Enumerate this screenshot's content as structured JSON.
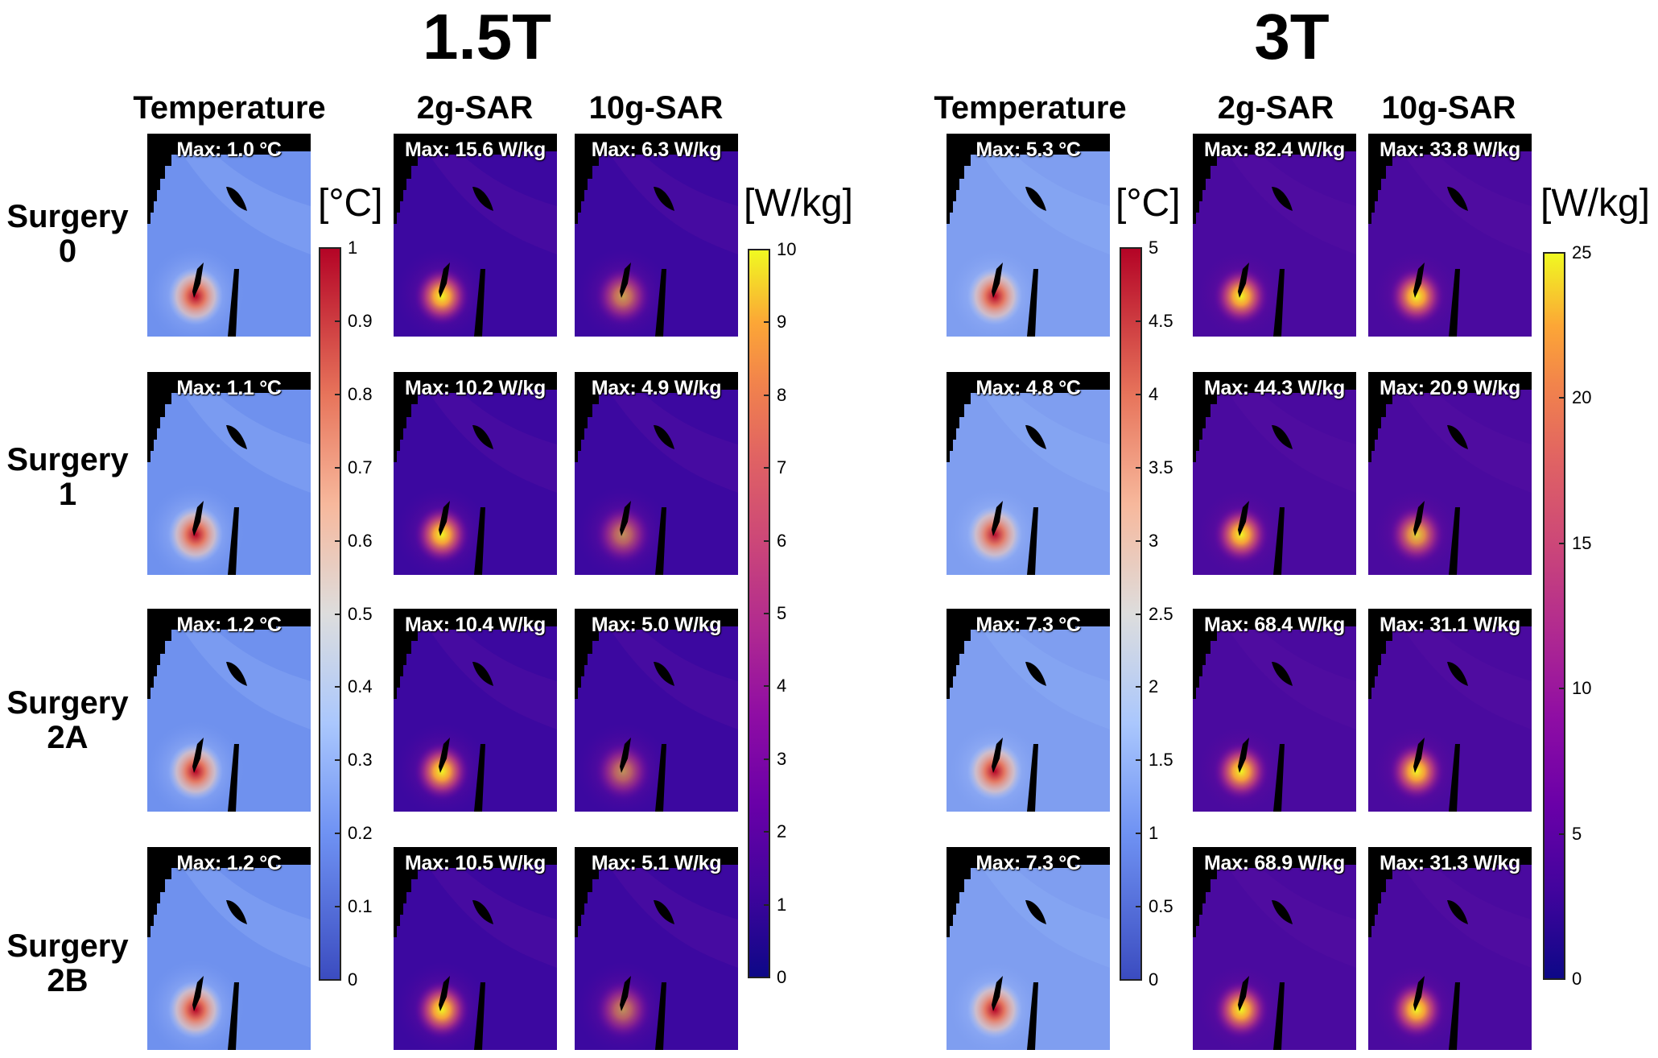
{
  "fields": [
    {
      "title": "1.5T",
      "columns": [
        "Temperature",
        "2g-SAR",
        "10g-SAR"
      ],
      "temp_colorbar": {
        "unit": "[°C]",
        "min": 0,
        "max": 1,
        "ticks": [
          "1",
          "0.9",
          "0.8",
          "0.7",
          "0.6",
          "0.5",
          "0.4",
          "0.3",
          "0.2",
          "0.1",
          "0"
        ]
      },
      "sar_colorbar": {
        "unit": "[W/kg]",
        "min": 0,
        "max": 10,
        "ticks": [
          "10",
          "9",
          "8",
          "7",
          "6",
          "5",
          "4",
          "3",
          "2",
          "1",
          "0"
        ]
      },
      "rows": [
        {
          "temperature": "Max: 1.0 °C",
          "sar2g": "Max: 15.6 W/kg",
          "sar10g": "Max: 6.3 W/kg",
          "temp_intensity": 1.0,
          "sar2g_intensity": 1.0,
          "sar10g_intensity": 0.63
        },
        {
          "temperature": "Max: 1.1 °C",
          "sar2g": "Max: 10.2 W/kg",
          "sar10g": "Max: 4.9 W/kg",
          "temp_intensity": 1.0,
          "sar2g_intensity": 1.0,
          "sar10g_intensity": 0.49
        },
        {
          "temperature": "Max: 1.2 °C",
          "sar2g": "Max: 10.4 W/kg",
          "sar10g": "Max: 5.0 W/kg",
          "temp_intensity": 1.0,
          "sar2g_intensity": 1.0,
          "sar10g_intensity": 0.5
        },
        {
          "temperature": "Max: 1.2 °C",
          "sar2g": "Max: 10.5 W/kg",
          "sar10g": "Max: 5.1 W/kg",
          "temp_intensity": 1.0,
          "sar2g_intensity": 1.0,
          "sar10g_intensity": 0.51
        }
      ]
    },
    {
      "title": "3T",
      "columns": [
        "Temperature",
        "2g-SAR",
        "10g-SAR"
      ],
      "temp_colorbar": {
        "unit": "[°C]",
        "min": 0,
        "max": 5,
        "ticks": [
          "5",
          "4.5",
          "4",
          "3.5",
          "3",
          "2.5",
          "2",
          "1.5",
          "1",
          "0.5",
          "0"
        ]
      },
      "sar_colorbar": {
        "unit": "[W/kg]",
        "min": 0,
        "max": 25,
        "ticks": [
          "25",
          "20",
          "15",
          "10",
          "5",
          "0"
        ]
      },
      "rows": [
        {
          "temperature": "Max: 5.3 °C",
          "sar2g": "Max: 82.4 W/kg",
          "sar10g": "Max: 33.8 W/kg",
          "temp_intensity": 1.0,
          "sar2g_intensity": 1.0,
          "sar10g_intensity": 1.0
        },
        {
          "temperature": "Max: 4.8 °C",
          "sar2g": "Max: 44.3 W/kg",
          "sar10g": "Max: 20.9 W/kg",
          "temp_intensity": 0.96,
          "sar2g_intensity": 1.0,
          "sar10g_intensity": 0.84
        },
        {
          "temperature": "Max: 7.3 °C",
          "sar2g": "Max: 68.4 W/kg",
          "sar10g": "Max: 31.1 W/kg",
          "temp_intensity": 1.0,
          "sar2g_intensity": 1.0,
          "sar10g_intensity": 1.0
        },
        {
          "temperature": "Max: 7.3 °C",
          "sar2g": "Max: 68.9 W/kg",
          "sar10g": "Max: 31.3 W/kg",
          "temp_intensity": 1.0,
          "sar2g_intensity": 1.0,
          "sar10g_intensity": 1.0
        }
      ]
    }
  ],
  "row_labels": [
    {
      "line1": "Surgery",
      "line2": "0"
    },
    {
      "line1": "Surgery",
      "line2": "1"
    },
    {
      "line1": "Surgery",
      "line2": "2A"
    },
    {
      "line1": "Surgery",
      "line2": "2B"
    }
  ]
}
